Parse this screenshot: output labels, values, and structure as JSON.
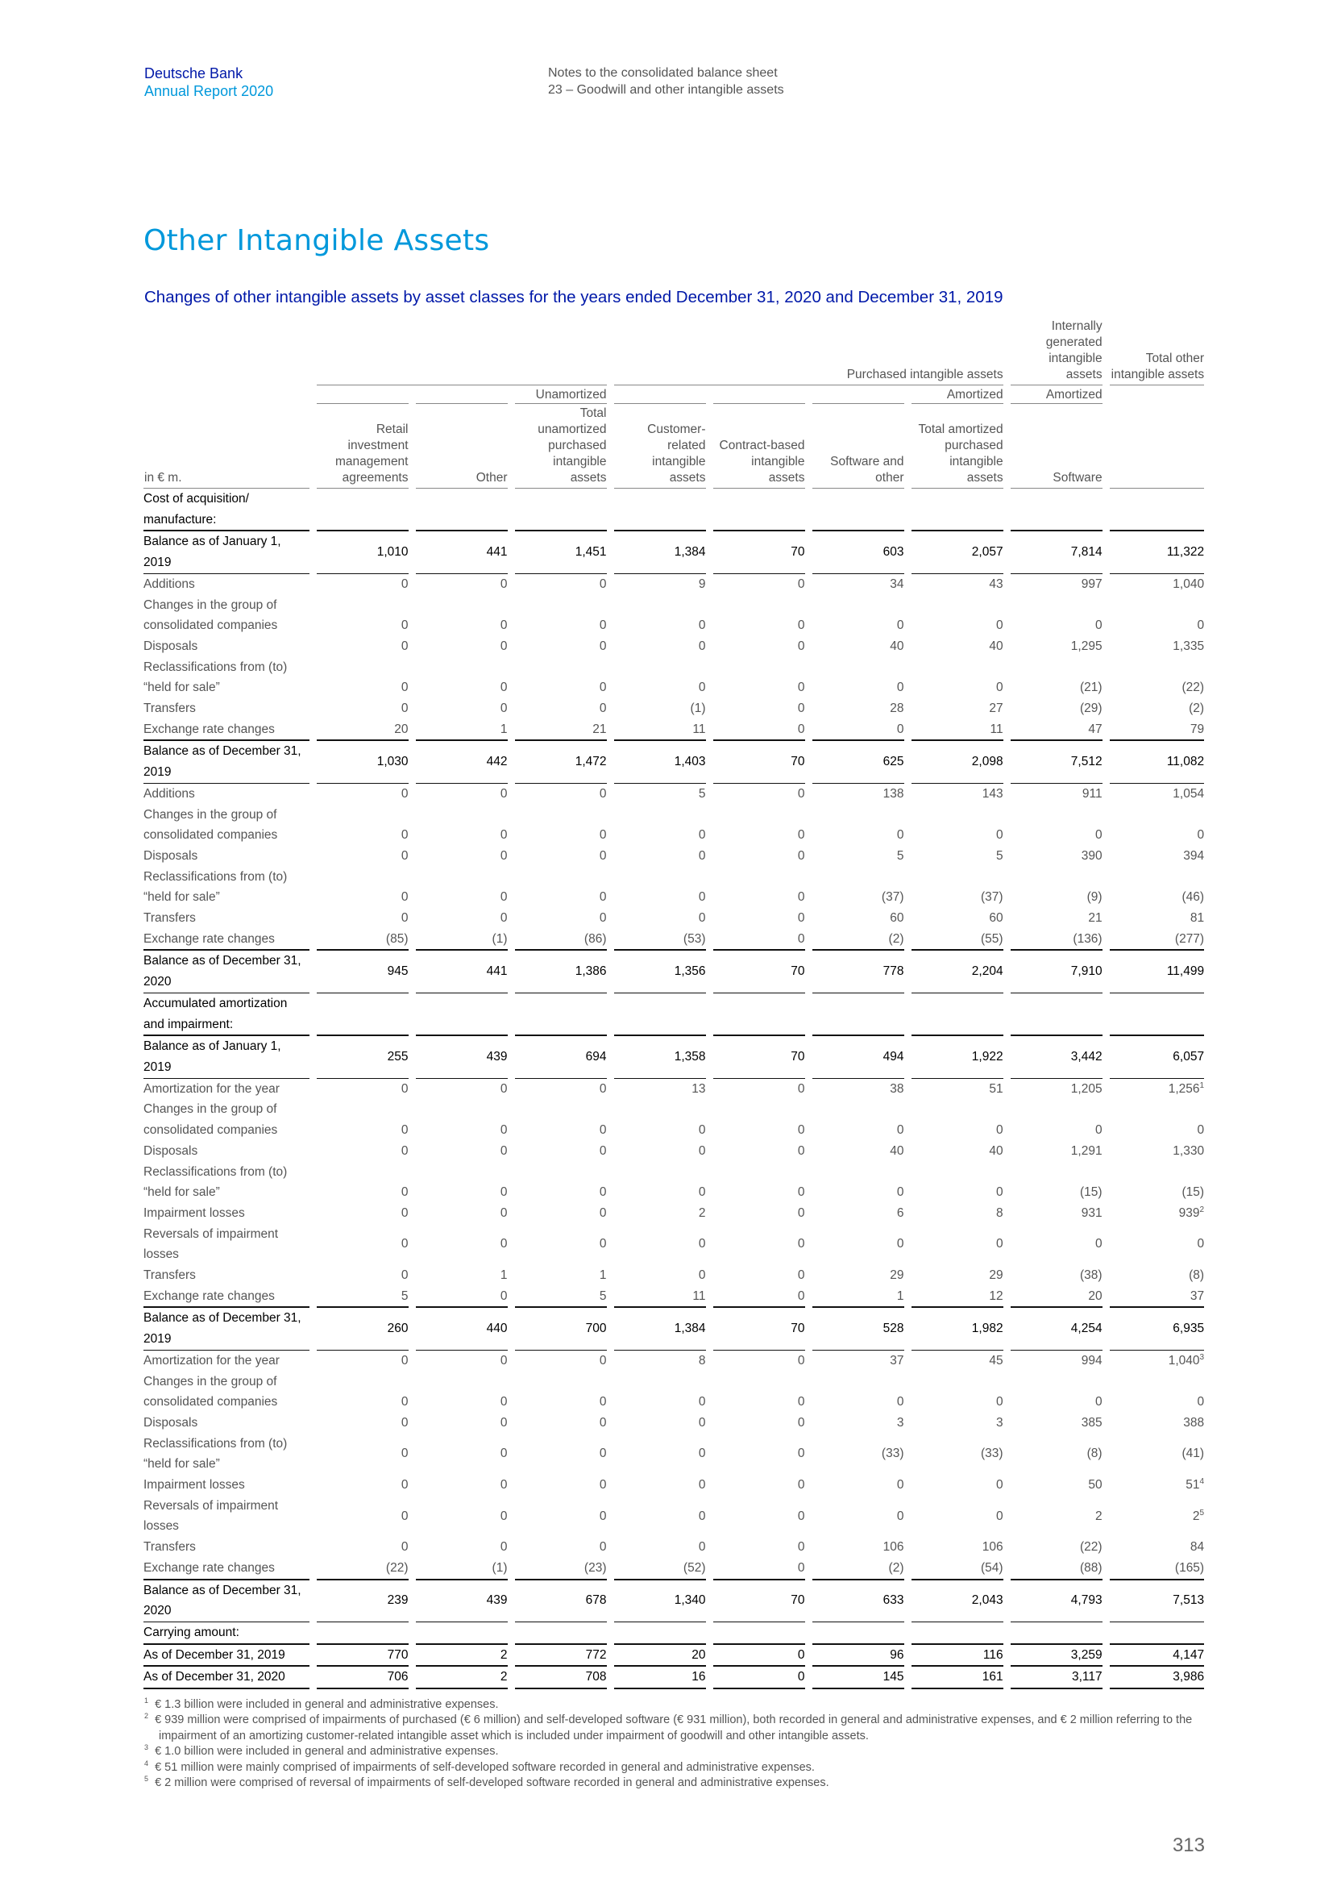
{
  "header": {
    "company": "Deutsche Bank",
    "report": "Annual Report 2020",
    "section": "Notes to the consolidated balance sheet",
    "subsection": "23 – Goodwill and other intangible assets"
  },
  "section_title": "Other Intangible Assets",
  "table_title": "Changes of other intangible assets by asset classes for the years ended December 31, 2020 and December 31, 2019",
  "table": {
    "unit_label": "in € m.",
    "group1": {
      "purchased": "Purchased intangible assets",
      "internal": "Internally generated intangible assets",
      "total": "Total other intangible assets"
    },
    "group2": {
      "unamortized": "Unamortized",
      "amortized": "Amortized",
      "amortized_internal": "Amortized"
    },
    "columns": [
      "Retail investment management agreements",
      "Other",
      "Total unamortized purchased intangible assets",
      "Customer-related intangible assets",
      "Contract-based intangible assets",
      "Software and other",
      "Total amortized purchased intangible assets",
      "Software",
      ""
    ],
    "section_cost": "Cost of acquisition/ manufacture:",
    "section_amort": "Accumulated amortization and impairment:",
    "section_carry": "Carrying amount:",
    "cost_rows": [
      {
        "label": "Balance as of January 1, 2019",
        "v": [
          "1,010",
          "441",
          "1,451",
          "1,384",
          "70",
          "603",
          "2,057",
          "7,814",
          "11,322"
        ]
      },
      {
        "label": "Additions",
        "v": [
          "0",
          "0",
          "0",
          "9",
          "0",
          "34",
          "43",
          "997",
          "1,040"
        ]
      },
      {
        "label": "Changes in the group of consolidated companies",
        "v": [
          "0",
          "0",
          "0",
          "0",
          "0",
          "0",
          "0",
          "0",
          "0"
        ]
      },
      {
        "label": "Disposals",
        "v": [
          "0",
          "0",
          "0",
          "0",
          "0",
          "40",
          "40",
          "1,295",
          "1,335"
        ]
      },
      {
        "label": "Reclassifications from (to) “held for sale”",
        "v": [
          "0",
          "0",
          "0",
          "0",
          "0",
          "0",
          "0",
          "(21)",
          "(22)"
        ]
      },
      {
        "label": "Transfers",
        "v": [
          "0",
          "0",
          "0",
          "(1)",
          "0",
          "28",
          "27",
          "(29)",
          "(2)"
        ]
      },
      {
        "label": "Exchange rate changes",
        "v": [
          "20",
          "1",
          "21",
          "11",
          "0",
          "0",
          "11",
          "47",
          "79"
        ]
      },
      {
        "label": "Balance as of December 31, 2019",
        "v": [
          "1,030",
          "442",
          "1,472",
          "1,403",
          "70",
          "625",
          "2,098",
          "7,512",
          "11,082"
        ]
      },
      {
        "label": "Additions",
        "v": [
          "0",
          "0",
          "0",
          "5",
          "0",
          "138",
          "143",
          "911",
          "1,054"
        ]
      },
      {
        "label": "Changes in the group of consolidated companies",
        "v": [
          "0",
          "0",
          "0",
          "0",
          "0",
          "0",
          "0",
          "0",
          "0"
        ]
      },
      {
        "label": "Disposals",
        "v": [
          "0",
          "0",
          "0",
          "0",
          "0",
          "5",
          "5",
          "390",
          "394"
        ]
      },
      {
        "label": "Reclassifications from (to) “held for sale”",
        "v": [
          "0",
          "0",
          "0",
          "0",
          "0",
          "(37)",
          "(37)",
          "(9)",
          "(46)"
        ]
      },
      {
        "label": "Transfers",
        "v": [
          "0",
          "0",
          "0",
          "0",
          "0",
          "60",
          "60",
          "21",
          "81"
        ]
      },
      {
        "label": "Exchange rate changes",
        "v": [
          "(85)",
          "(1)",
          "(86)",
          "(53)",
          "0",
          "(2)",
          "(55)",
          "(136)",
          "(277)"
        ]
      },
      {
        "label": "Balance as of December 31, 2020",
        "v": [
          "945",
          "441",
          "1,386",
          "1,356",
          "70",
          "778",
          "2,204",
          "7,910",
          "11,499"
        ]
      }
    ],
    "amort_rows": [
      {
        "label": "Balance as of January 1, 2019",
        "v": [
          "255",
          "439",
          "694",
          "1,358",
          "70",
          "494",
          "1,922",
          "3,442",
          "6,057"
        ]
      },
      {
        "label": "Amortization for the year",
        "v": [
          "0",
          "0",
          "0",
          "13",
          "0",
          "38",
          "51",
          "1,205",
          "1,256"
        ],
        "fn": "1"
      },
      {
        "label": "Changes in the group of consolidated companies",
        "v": [
          "0",
          "0",
          "0",
          "0",
          "0",
          "0",
          "0",
          "0",
          "0"
        ]
      },
      {
        "label": "Disposals",
        "v": [
          "0",
          "0",
          "0",
          "0",
          "0",
          "40",
          "40",
          "1,291",
          "1,330"
        ]
      },
      {
        "label": "Reclassifications from (to) “held for sale”",
        "v": [
          "0",
          "0",
          "0",
          "0",
          "0",
          "0",
          "0",
          "(15)",
          "(15)"
        ]
      },
      {
        "label": "Impairment losses",
        "v": [
          "0",
          "0",
          "0",
          "2",
          "0",
          "6",
          "8",
          "931",
          "939"
        ],
        "fn": "2"
      },
      {
        "label": "Reversals of impairment losses",
        "v": [
          "0",
          "0",
          "0",
          "0",
          "0",
          "0",
          "0",
          "0",
          "0"
        ]
      },
      {
        "label": "Transfers",
        "v": [
          "0",
          "1",
          "1",
          "0",
          "0",
          "29",
          "29",
          "(38)",
          "(8)"
        ]
      },
      {
        "label": "Exchange rate changes",
        "v": [
          "5",
          "0",
          "5",
          "11",
          "0",
          "1",
          "12",
          "20",
          "37"
        ]
      },
      {
        "label": "Balance as of December 31, 2019",
        "v": [
          "260",
          "440",
          "700",
          "1,384",
          "70",
          "528",
          "1,982",
          "4,254",
          "6,935"
        ]
      },
      {
        "label": "Amortization for the year",
        "v": [
          "0",
          "0",
          "0",
          "8",
          "0",
          "37",
          "45",
          "994",
          "1,040"
        ],
        "fn": "3"
      },
      {
        "label": "Changes in the group of consolidated companies",
        "v": [
          "0",
          "0",
          "0",
          "0",
          "0",
          "0",
          "0",
          "0",
          "0"
        ]
      },
      {
        "label": "Disposals",
        "v": [
          "0",
          "0",
          "0",
          "0",
          "0",
          "3",
          "3",
          "385",
          "388"
        ]
      },
      {
        "label": "Reclassifications from (to) “held for sale”",
        "v": [
          "0",
          "0",
          "0",
          "0",
          "0",
          "(33)",
          "(33)",
          "(8)",
          "(41)"
        ]
      },
      {
        "label": "Impairment losses",
        "v": [
          "0",
          "0",
          "0",
          "0",
          "0",
          "0",
          "0",
          "50",
          "51"
        ],
        "fn": "4"
      },
      {
        "label": "Reversals of impairment losses",
        "v": [
          "0",
          "0",
          "0",
          "0",
          "0",
          "0",
          "0",
          "2",
          "2"
        ],
        "fn": "5"
      },
      {
        "label": "Transfers",
        "v": [
          "0",
          "0",
          "0",
          "0",
          "0",
          "106",
          "106",
          "(22)",
          "84"
        ]
      },
      {
        "label": "Exchange rate changes",
        "v": [
          "(22)",
          "(1)",
          "(23)",
          "(52)",
          "0",
          "(2)",
          "(54)",
          "(88)",
          "(165)"
        ]
      },
      {
        "label": "Balance as of December 31, 2020",
        "v": [
          "239",
          "439",
          "678",
          "1,340",
          "70",
          "633",
          "2,043",
          "4,793",
          "7,513"
        ]
      }
    ],
    "carry_rows": [
      {
        "label": "As of December 31, 2019",
        "v": [
          "770",
          "2",
          "772",
          "20",
          "0",
          "96",
          "116",
          "3,259",
          "4,147"
        ]
      },
      {
        "label": "As of December 31, 2020",
        "v": [
          "706",
          "2",
          "708",
          "16",
          "0",
          "145",
          "161",
          "3,117",
          "3,986"
        ]
      }
    ]
  },
  "footnotes": [
    {
      "n": "1",
      "text": "€ 1.3 billion were included in general and administrative expenses."
    },
    {
      "n": "2",
      "text": "€ 939 million were comprised of impairments of purchased (€ 6 million) and self-developed software (€ 931 million), both recorded in general and administrative expenses, and € 2 million referring to the impairment of an amortizing customer-related intangible asset which is included under impairment of goodwill and other intangible assets."
    },
    {
      "n": "3",
      "text": "€ 1.0 billion were included in general and administrative expenses."
    },
    {
      "n": "4",
      "text": "€ 51 million were mainly comprised of impairments of self-developed software recorded in general and administrative expenses."
    },
    {
      "n": "5",
      "text": "€ 2 million were comprised of reversal of impairments of self-developed software recorded in general and administrative expenses."
    }
  ],
  "page_number": "313"
}
